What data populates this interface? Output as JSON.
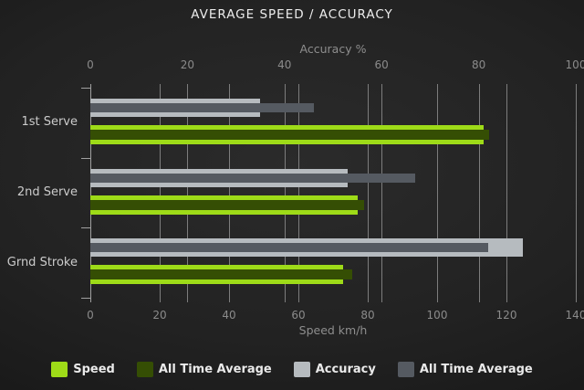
{
  "chart_data": {
    "type": "bar",
    "orientation": "horizontal",
    "title": "AVERAGE SPEED / ACCURACY",
    "categories": [
      "1st Serve",
      "2nd Serve",
      "Grnd Stroke"
    ],
    "series": [
      {
        "name": "Speed",
        "axis": "speed",
        "color": "#9edb18",
        "values": [
          113.5,
          77,
          73
        ]
      },
      {
        "name": "All Time Average",
        "axis": "speed",
        "color": "#354e04",
        "values": [
          115,
          79,
          75.5
        ]
      },
      {
        "name": "Accuracy",
        "axis": "accuracy",
        "color": "#b6bbbf",
        "values": [
          35,
          53,
          89
        ]
      },
      {
        "name": "All Time Average",
        "axis": "accuracy",
        "color": "#555a61",
        "values": [
          46,
          67,
          82
        ]
      }
    ],
    "axes": {
      "accuracy": {
        "label": "Accuracy %",
        "position": "top",
        "min": 0,
        "max": 100,
        "ticks": [
          0,
          20,
          40,
          60,
          80,
          100
        ]
      },
      "speed": {
        "label": "Speed km/h",
        "position": "bottom",
        "min": 0,
        "max": 140,
        "ticks": [
          0,
          20,
          40,
          60,
          80,
          100,
          120,
          140
        ]
      }
    },
    "grid": true,
    "legend_position": "bottom"
  },
  "colors": {
    "background": "#222222",
    "gridline": "#7d7d7d",
    "axis_line": "#a0a0a0",
    "tick_text": "#8b8b8b",
    "category_text": "#cccccc",
    "title_text": "#ececec",
    "legend_text": "#eaeaea"
  }
}
